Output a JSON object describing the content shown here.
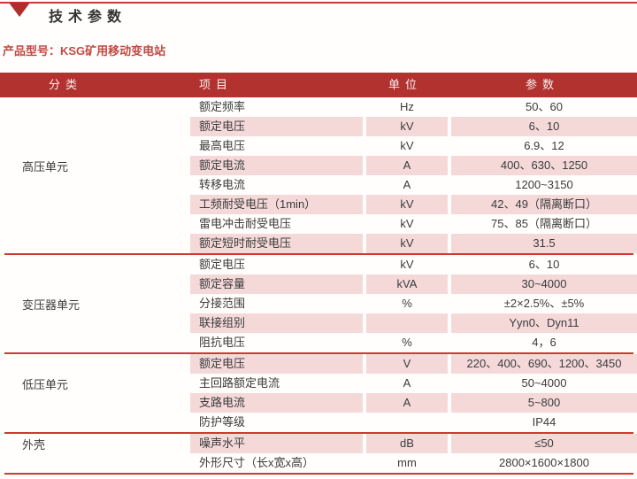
{
  "header": {
    "title": "技术参数",
    "product_label": "产品型号：KSG矿用移动变电站"
  },
  "table": {
    "headers": {
      "category": "分类",
      "item": "项目",
      "unit": "单位",
      "param": "参数"
    },
    "sections": [
      {
        "category": "高压单元",
        "rows": [
          {
            "item": "额定频率",
            "unit": "Hz",
            "param": "50、60"
          },
          {
            "item": "额定电压",
            "unit": "kV",
            "param": "6、10"
          },
          {
            "item": "最高电压",
            "unit": "kV",
            "param": "6.9、12"
          },
          {
            "item": "额定电流",
            "unit": "A",
            "param": "400、630、1250"
          },
          {
            "item": "转移电流",
            "unit": "A",
            "param": "1200~3150"
          },
          {
            "item": "工频耐受电压（1min）",
            "unit": "kV",
            "param": "42、49（隔离断口）"
          },
          {
            "item": "雷电冲击耐受电压",
            "unit": "kV",
            "param": "75、85（隔离断口）"
          },
          {
            "item": "额定短时耐受电压",
            "unit": "kV",
            "param": "31.5"
          }
        ]
      },
      {
        "category": "变压器单元",
        "rows": [
          {
            "item": "额定电压",
            "unit": "kV",
            "param": "6、10"
          },
          {
            "item": "额定容量",
            "unit": "kVA",
            "param": "30~4000"
          },
          {
            "item": "分接范围",
            "unit": "%",
            "param": "±2×2.5%、±5%"
          },
          {
            "item": "联接组别",
            "unit": "",
            "param": "Yyn0、Dyn11"
          },
          {
            "item": "阻抗电压",
            "unit": "%",
            "param": "4，6"
          }
        ]
      },
      {
        "category": "低压单元",
        "rows": [
          {
            "item": "额定电压",
            "unit": "V",
            "param": "220、400、690、1200、3450"
          },
          {
            "item": "主回路额定电流",
            "unit": "A",
            "param": "50~4000"
          },
          {
            "item": "支路电流",
            "unit": "A",
            "param": "5~800"
          },
          {
            "item": "防护等级",
            "unit": "",
            "param": "IP44"
          }
        ]
      },
      {
        "category": "外壳",
        "rows": [
          {
            "item": "噪声水平",
            "unit": "dB",
            "param": "≤50"
          },
          {
            "item": "外形尺寸（长x宽x高）",
            "unit": "mm",
            "param": "2800×1600×1800"
          }
        ]
      }
    ]
  },
  "colors": {
    "header_bg": "#B2322F",
    "row_stripe": "#F5D9D9",
    "divider": "#CE3A32",
    "accent_text": "#C04A42"
  }
}
